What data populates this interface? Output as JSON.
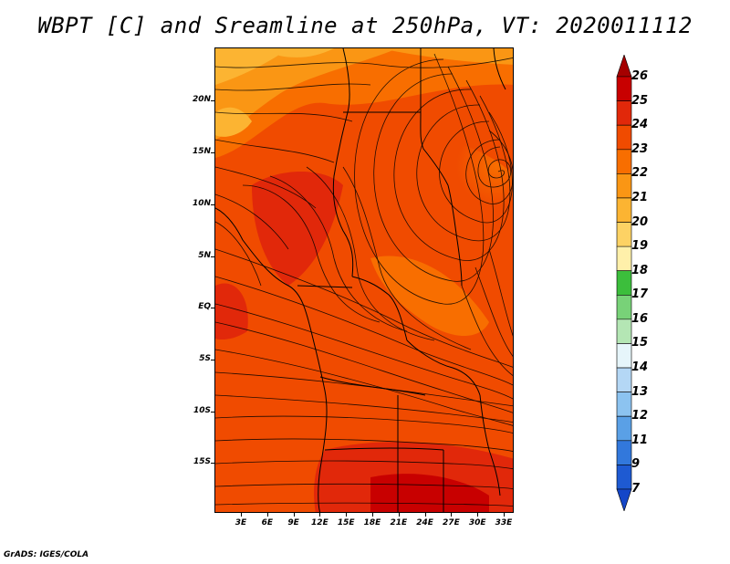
{
  "title": "WBPT [C] and Sreamline at 250hPa, VT: 2020011112",
  "footer": "GrADS: IGES/COLA",
  "map": {
    "y_ticks": [
      "20N",
      "15N",
      "10N",
      "5N",
      "EQ",
      "5S",
      "10S",
      "15S"
    ],
    "x_ticks": [
      "3E",
      "6E",
      "9E",
      "12E",
      "15E",
      "18E",
      "21E",
      "24E",
      "27E",
      "30E",
      "33E"
    ],
    "field": "wet-bulb potential temperature",
    "overlay": "streamlines"
  },
  "colorbar": {
    "labels": [
      "26",
      "25",
      "24",
      "23",
      "22",
      "21",
      "20",
      "19",
      "18",
      "17",
      "16",
      "15",
      "14",
      "13",
      "12",
      "11",
      "9",
      "7"
    ],
    "colors": [
      "#a50000",
      "#c80000",
      "#e1280a",
      "#f04b00",
      "#f86e00",
      "#fa9614",
      "#fcb432",
      "#fdd264",
      "#fff0aa",
      "#3cbe3c",
      "#78d278",
      "#b4e6b4",
      "#e6f5fa",
      "#b4d7f5",
      "#8cc3f0",
      "#5aa0e6",
      "#3278dc",
      "#1e5ad2",
      "#1446c8"
    ]
  }
}
